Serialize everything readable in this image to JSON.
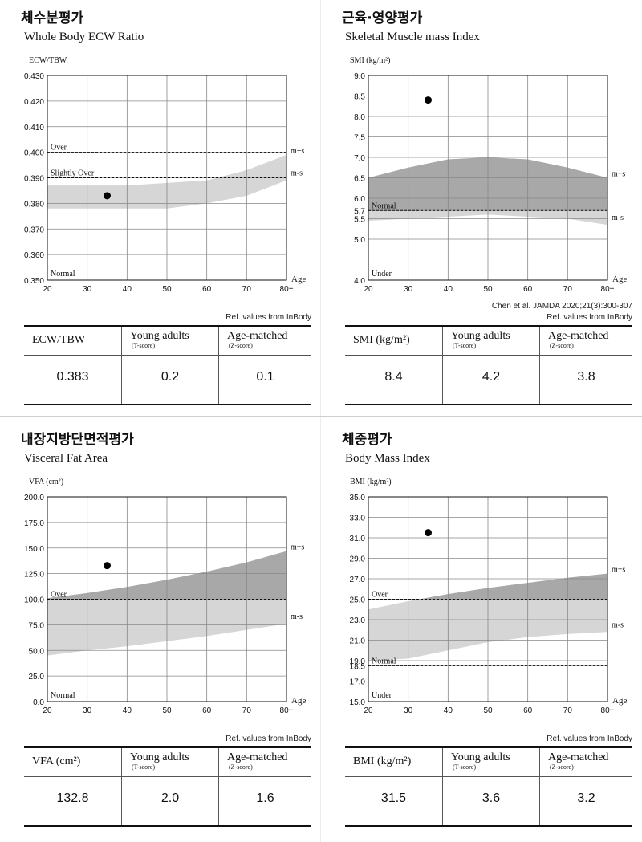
{
  "panels": [
    {
      "id": "ecw",
      "title": "체수분평가",
      "subtitle": "Whole Body ECW Ratio",
      "ref_lines": [
        "Ref. values from InBody"
      ],
      "table": {
        "label": "ECW/TBW",
        "t_header": "Young adults",
        "t_sub": "(T-score)",
        "z_header": "Age-matched",
        "z_sub": "(Z-score)",
        "value": "0.383",
        "t_score": "0.2",
        "z_score": "0.1"
      }
    },
    {
      "id": "smi",
      "title": "근육·영양평가",
      "subtitle": "Skeletal Muscle mass Index",
      "ref_lines": [
        "Chen et al. JAMDA 2020;21(3):300-307",
        "Ref. values from InBody"
      ],
      "table": {
        "label": "SMI (kg/m²)",
        "t_header": "Young adults",
        "t_sub": "(T-score)",
        "z_header": "Age-matched",
        "z_sub": "(Z-score)",
        "value": "8.4",
        "t_score": "4.2",
        "z_score": "3.8"
      }
    },
    {
      "id": "vfa",
      "title": "내장지방단면적평가",
      "subtitle": "Visceral Fat Area",
      "ref_lines": [
        "Ref. values from InBody"
      ],
      "table": {
        "label": "VFA (cm²)",
        "t_header": "Young adults",
        "t_sub": "(T-score)",
        "z_header": "Age-matched",
        "z_sub": "(Z-score)",
        "value": "132.8",
        "t_score": "2.0",
        "z_score": "1.6"
      }
    },
    {
      "id": "bmi",
      "title": "체중평가",
      "subtitle": "Body Mass Index",
      "ref_lines": [
        "Ref. values from InBody"
      ],
      "table": {
        "label": "BMI (kg/m²)",
        "t_header": "Young adults",
        "t_sub": "(T-score)",
        "z_header": "Age-matched",
        "z_sub": "(Z-score)",
        "value": "31.5",
        "t_score": "3.6",
        "z_score": "3.2"
      }
    }
  ],
  "chart_data": [
    {
      "type": "scatter",
      "ylabel": "ECW/TBW",
      "xlabel": "Age",
      "x_ticks": [
        "20",
        "30",
        "40",
        "50",
        "60",
        "70",
        "80+"
      ],
      "x_values": [
        20,
        30,
        40,
        50,
        60,
        70,
        80
      ],
      "ylim": [
        0.35,
        0.43
      ],
      "y_ticks": [
        "0.350",
        "0.360",
        "0.370",
        "0.380",
        "0.390",
        "0.400",
        "0.410",
        "0.420",
        "0.430"
      ],
      "y_tick_values": [
        0.35,
        0.36,
        0.37,
        0.38,
        0.39,
        0.4,
        0.41,
        0.42,
        0.43
      ],
      "grid": true,
      "point": {
        "x": 35,
        "y": 0.383
      },
      "band": {
        "ages": [
          20,
          30,
          40,
          50,
          60,
          70,
          80
        ],
        "upper": [
          0.387,
          0.387,
          0.387,
          0.388,
          0.389,
          0.393,
          0.399
        ],
        "lower": [
          0.378,
          0.378,
          0.378,
          0.378,
          0.38,
          0.383,
          0.389
        ]
      },
      "mean_band_shade": "#a8a8a8",
      "thresholds": [
        {
          "label": "Over",
          "value": 0.4
        },
        {
          "label": "Slightly Over",
          "value": 0.39
        }
      ],
      "zone_labels": [
        {
          "label": "Normal",
          "value": 0.35
        }
      ],
      "band_labels": {
        "upper": "m+s",
        "lower": "m-s"
      }
    },
    {
      "type": "scatter",
      "ylabel": "SMI (kg/m²)",
      "xlabel": "Age",
      "x_ticks": [
        "20",
        "30",
        "40",
        "50",
        "60",
        "70",
        "80+"
      ],
      "x_values": [
        20,
        30,
        40,
        50,
        60,
        70,
        80
      ],
      "ylim": [
        4.0,
        9.0
      ],
      "y_ticks": [
        "4.0",
        "5.0",
        "5.5",
        "5.7",
        "6.0",
        "6.5",
        "7.0",
        "7.5",
        "8.0",
        "8.5",
        "9.0"
      ],
      "y_tick_values": [
        4.0,
        5.0,
        5.5,
        5.7,
        6.0,
        6.5,
        7.0,
        7.5,
        8.0,
        8.5,
        9.0
      ],
      "grid": true,
      "point": {
        "x": 35,
        "y": 8.4
      },
      "band": {
        "ages": [
          20,
          30,
          40,
          50,
          60,
          70,
          80
        ],
        "upper": [
          6.5,
          6.75,
          6.95,
          7.0,
          6.95,
          6.75,
          6.5
        ],
        "lower": [
          5.45,
          5.5,
          5.55,
          5.6,
          5.55,
          5.5,
          5.35
        ]
      },
      "mean_band_shade": "#a8a8a8",
      "thresholds": [
        {
          "label": "Normal",
          "value": 5.7
        }
      ],
      "zone_labels": [
        {
          "label": "Under",
          "value": 4.0
        }
      ],
      "band_labels": {
        "upper": "m+s",
        "lower": "m-s"
      }
    },
    {
      "type": "scatter",
      "ylabel": "VFA (cm²)",
      "xlabel": "Age",
      "x_ticks": [
        "20",
        "30",
        "40",
        "50",
        "60",
        "70",
        "80+"
      ],
      "x_values": [
        20,
        30,
        40,
        50,
        60,
        70,
        80
      ],
      "ylim": [
        0,
        200
      ],
      "y_ticks": [
        "0.0",
        "25.0",
        "50.0",
        "75.0",
        "100.0",
        "125.0",
        "150.0",
        "175.0",
        "200.0"
      ],
      "y_tick_values": [
        0,
        25,
        50,
        75,
        100,
        125,
        150,
        175,
        200
      ],
      "grid": true,
      "point": {
        "x": 35,
        "y": 132.8
      },
      "band": {
        "ages": [
          20,
          30,
          40,
          50,
          60,
          70,
          80
        ],
        "upper": [
          101,
          106,
          112,
          119,
          127,
          136,
          147
        ],
        "lower": [
          45,
          50,
          54,
          59,
          64,
          70,
          76
        ]
      },
      "mean_band_shade": "#a8a8a8",
      "thresholds": [
        {
          "label": "Over",
          "value": 100
        }
      ],
      "zone_labels": [
        {
          "label": "Normal",
          "value": 0
        }
      ],
      "band_labels": {
        "upper": "m+s",
        "lower": "m-s"
      }
    },
    {
      "type": "scatter",
      "ylabel": "BMI (kg/m²)",
      "xlabel": "Age",
      "x_ticks": [
        "20",
        "30",
        "40",
        "50",
        "60",
        "70",
        "80+"
      ],
      "x_values": [
        20,
        30,
        40,
        50,
        60,
        70,
        80
      ],
      "ylim": [
        15,
        35
      ],
      "y_ticks": [
        "15.0",
        "17.0",
        "18.5",
        "19.0",
        "21.0",
        "23.0",
        "25.0",
        "27.0",
        "29.0",
        "31.0",
        "33.0",
        "35.0"
      ],
      "y_tick_values": [
        15,
        17,
        18.5,
        19,
        21,
        23,
        25,
        27,
        29,
        31,
        33,
        35
      ],
      "grid": true,
      "point": {
        "x": 35,
        "y": 31.5
      },
      "band": {
        "ages": [
          20,
          30,
          40,
          50,
          60,
          70,
          80
        ],
        "upper": [
          24.0,
          24.8,
          25.5,
          26.1,
          26.6,
          27.1,
          27.5
        ],
        "lower": [
          19.0,
          19.2,
          20.0,
          20.8,
          21.3,
          21.6,
          21.8
        ]
      },
      "mean_band_shade": "#a8a8a8",
      "thresholds": [
        {
          "label": "Over",
          "value": 25
        },
        {
          "label": "Normal",
          "value": 18.5
        }
      ],
      "zone_labels": [
        {
          "label": "Under",
          "value": 15
        }
      ],
      "band_labels": {
        "upper": "m+s",
        "lower": "m-s"
      }
    }
  ]
}
